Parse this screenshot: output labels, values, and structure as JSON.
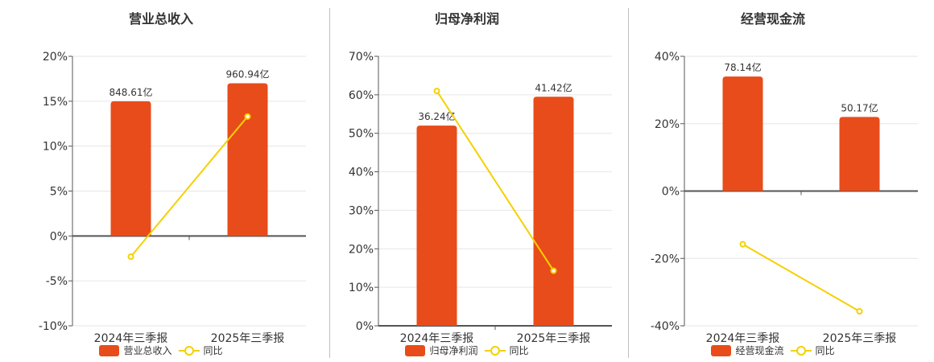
{
  "colors": {
    "bar": "#e84c1a",
    "line": "#f5d000",
    "axis": "#555555",
    "grid": "#e6e6e6"
  },
  "legend": {
    "line_label": "同比"
  },
  "chart_data": [
    {
      "type": "bar",
      "title": "营业总收入",
      "categories": [
        "2024年三季报",
        "2025年三季报"
      ],
      "series": [
        {
          "name": "营业总收入",
          "type": "bar",
          "values": [
            15.0,
            17.0
          ],
          "labels": [
            "848.61亿",
            "960.94亿"
          ]
        },
        {
          "name": "同比",
          "type": "line",
          "values": [
            -2.3,
            13.3
          ]
        }
      ],
      "yticks": [
        "20%",
        "15%",
        "10%",
        "5%",
        "0%",
        "-5%",
        "-10%"
      ],
      "ylim": [
        -10,
        20
      ],
      "grid": true,
      "legend_position": "bottom"
    },
    {
      "type": "bar",
      "title": "归母净利润",
      "categories": [
        "2024年三季报",
        "2025年三季报"
      ],
      "series": [
        {
          "name": "归母净利润",
          "type": "bar",
          "values": [
            52.0,
            59.5
          ],
          "labels": [
            "36.24亿",
            "41.42亿"
          ]
        },
        {
          "name": "同比",
          "type": "line",
          "values": [
            61.0,
            14.3
          ]
        }
      ],
      "yticks": [
        "70%",
        "60%",
        "50%",
        "40%",
        "30%",
        "20%",
        "10%",
        "0%"
      ],
      "ylim": [
        0,
        70
      ],
      "grid": true,
      "legend_position": "bottom"
    },
    {
      "type": "bar",
      "title": "经营现金流",
      "categories": [
        "2024年三季报",
        "2025年三季报"
      ],
      "series": [
        {
          "name": "经营现金流",
          "type": "bar",
          "values": [
            34.0,
            22.0
          ],
          "labels": [
            "78.14亿",
            "50.17亿"
          ]
        },
        {
          "name": "同比",
          "type": "line",
          "values": [
            -15.8,
            -35.7
          ]
        }
      ],
      "yticks": [
        "40%",
        "20%",
        "0%",
        "-20%",
        "-40%"
      ],
      "ylim": [
        -40,
        40
      ],
      "grid": true,
      "legend_position": "bottom"
    }
  ]
}
